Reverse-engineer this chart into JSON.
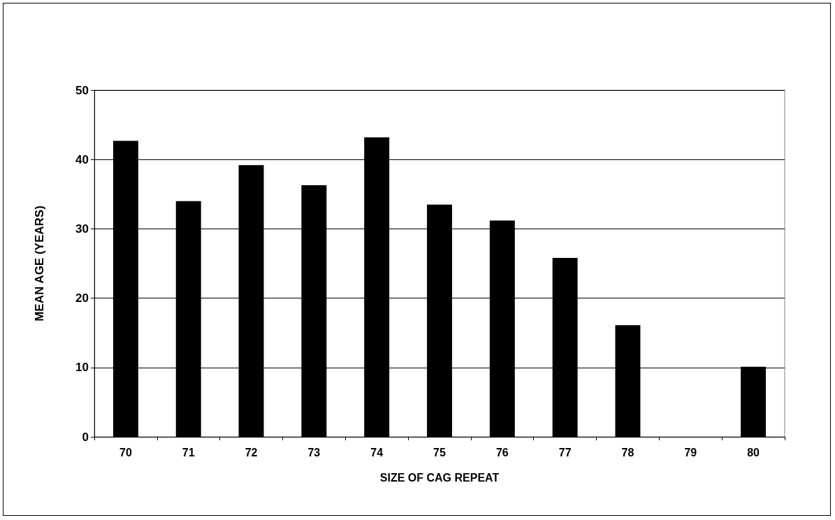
{
  "chart_data": {
    "type": "bar",
    "xlabel": "SIZE OF CAG REPEAT",
    "ylabel": "MEAN AGE (YEARS)",
    "categories": [
      "70",
      "71",
      "72",
      "73",
      "74",
      "75",
      "76",
      "77",
      "78",
      "79",
      "80"
    ],
    "values": [
      42.7,
      34.0,
      39.2,
      36.3,
      43.2,
      33.5,
      31.2,
      25.8,
      16.1,
      null,
      10.1
    ],
    "color": "#000000",
    "ylim": [
      0,
      50
    ],
    "yticks": [
      0,
      10,
      20,
      30,
      40,
      50
    ],
    "grid": "y"
  }
}
